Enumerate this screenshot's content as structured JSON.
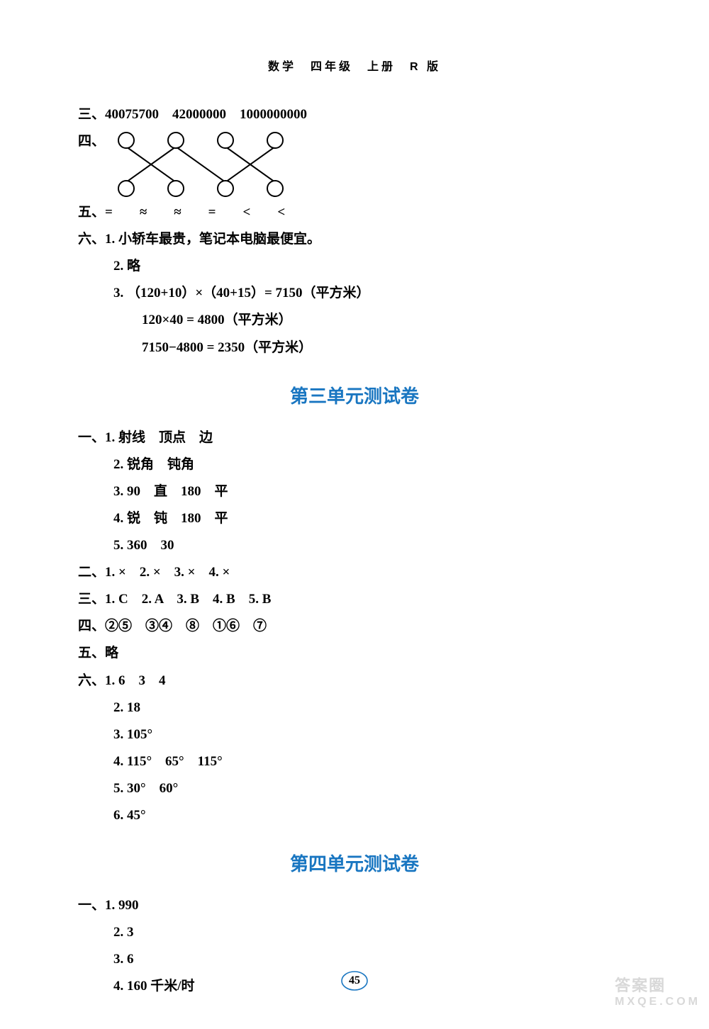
{
  "header": "数学　四年级　上册　R 版",
  "section_header_color": "#1976c1",
  "text_color": "#000000",
  "bg_color": "#ffffff",
  "top": {
    "line_three": "三、40075700　42000000　1000000000",
    "line_four_label": "四、",
    "diagram": {
      "top_nodes": [
        30,
        100,
        170,
        240
      ],
      "bottom_nodes": [
        30,
        100,
        170,
        240
      ],
      "node_radius": 11,
      "node_color": "#000000",
      "bg": "#ffffff",
      "edges": [
        [
          0,
          1
        ],
        [
          1,
          0
        ],
        [
          1,
          2
        ],
        [
          2,
          3
        ],
        [
          3,
          2
        ]
      ]
    },
    "line_five": "五、=　　≈　　≈　　=　　<　　<",
    "line_six_1": "六、1. 小轿车最贵，笔记本电脑最便宜。",
    "line_six_2": "2. 略",
    "line_six_3a": "3. （120+10）×（40+15）= 7150（平方米）",
    "line_six_3b": "120×40 = 4800（平方米）",
    "line_six_3c": "7150−4800 = 2350（平方米）"
  },
  "section3": {
    "title": "第三单元测试卷",
    "one_1": "一、1. 射线　顶点　边",
    "one_2": "2. 锐角　钝角",
    "one_3": "3. 90　直　180　平",
    "one_4": "4. 锐　钝　180　平",
    "one_5": "5. 360　30",
    "two": "二、1. ×　2. ×　3. ×　4. ×",
    "three": "三、1. C　2. A　3. B　4. B　5. B",
    "four": "四、②⑤　③④　⑧　①⑥　⑦",
    "five": "五、略",
    "six_1": "六、1. 6　3　4",
    "six_2": "2. 18",
    "six_3": "3. 105°",
    "six_4": "4. 115°　65°　115°",
    "six_5": "5. 30°　60°",
    "six_6": "6. 45°"
  },
  "section4": {
    "title": "第四单元测试卷",
    "one_1": "一、1. 990",
    "one_2": "2. 3",
    "one_3": "3. 6",
    "one_4": "4. 160 千米/时"
  },
  "page_number": "45",
  "page_ring_color": "#1976c1",
  "watermark": {
    "top_text": "答案圈",
    "bottom_text": "MXQE.COM",
    "color": "#cccccc"
  }
}
